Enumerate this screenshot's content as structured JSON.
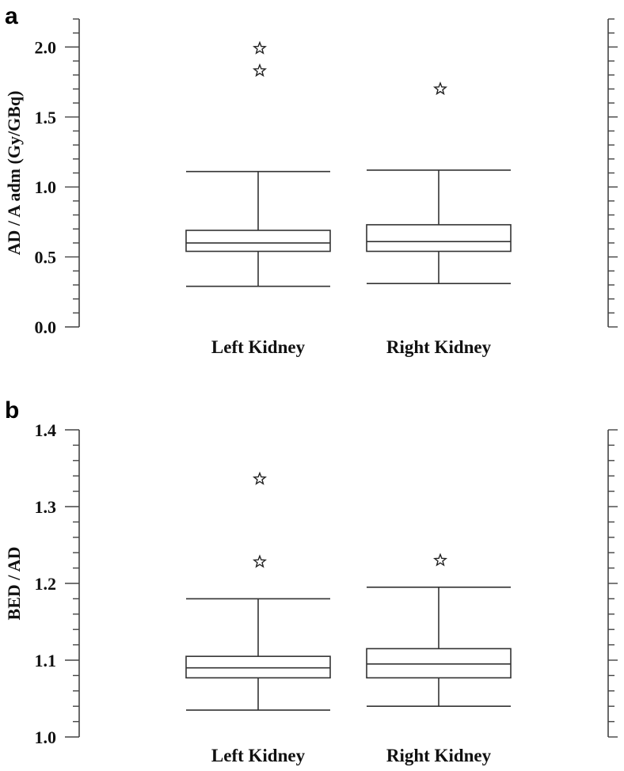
{
  "chart_data": [
    {
      "type": "box",
      "panel": "a",
      "ylabel": "AD / A adm (Gy/GBq)",
      "ylim": [
        0.0,
        2.2
      ],
      "yticks": [
        "0.0",
        "0.5",
        "1.0",
        "1.5",
        "2.0"
      ],
      "categories": [
        "Left Kidney",
        "Right Kidney"
      ],
      "boxes": [
        {
          "q1": 0.54,
          "median": 0.6,
          "q3": 0.69,
          "whisker_low": 0.29,
          "whisker_high": 1.11,
          "outliers": [
            1.83,
            1.99
          ]
        },
        {
          "q1": 0.54,
          "median": 0.61,
          "q3": 0.73,
          "whisker_low": 0.31,
          "whisker_high": 1.12,
          "outliers": [
            1.7
          ]
        }
      ]
    },
    {
      "type": "box",
      "panel": "b",
      "ylabel": "BED / AD",
      "ylim": [
        1.0,
        1.4
      ],
      "yticks": [
        "1.0",
        "1.1",
        "1.2",
        "1.3",
        "1.4"
      ],
      "categories": [
        "Left Kidney",
        "Right Kidney"
      ],
      "boxes": [
        {
          "q1": 1.077,
          "median": 1.09,
          "q3": 1.105,
          "whisker_low": 1.035,
          "whisker_high": 1.18,
          "outliers": [
            1.228,
            1.336
          ]
        },
        {
          "q1": 1.077,
          "median": 1.095,
          "q3": 1.115,
          "whisker_low": 1.04,
          "whisker_high": 1.195,
          "outliers": [
            1.23
          ]
        }
      ]
    }
  ]
}
